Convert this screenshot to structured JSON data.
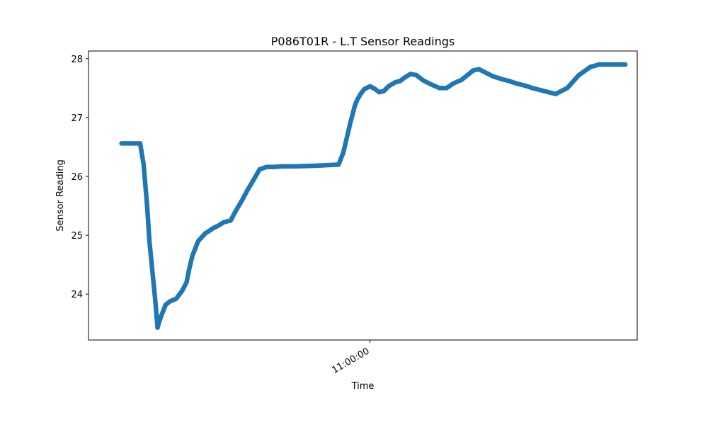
{
  "chart_data": {
    "type": "scatter",
    "title": "P086T01R - L.T Sensor Readings",
    "xlabel": "Time",
    "ylabel": "Sensor Reading",
    "x_ticks": [
      {
        "value": "11:00:00",
        "minutes": 0
      }
    ],
    "y_ticks": [
      24,
      25,
      26,
      27,
      28
    ],
    "xlim_minutes": [
      -24.25,
      23.03
    ],
    "ylim": [
      23.22,
      28.13
    ],
    "grid": false,
    "marker_color": "#1f77b4",
    "series": [
      {
        "x_minutes": [
          -21.4,
          -20.5,
          -19.8,
          -19.5,
          -19.2,
          -19.0,
          -18.7,
          -18.5,
          -18.3,
          -18.2,
          -18.0,
          -17.8,
          -17.6,
          -17.2,
          -16.7,
          -16.2,
          -15.8,
          -15.6,
          -15.3,
          -14.8,
          -14.2,
          -13.8,
          -13.5,
          -13.0,
          -12.6,
          -12.0,
          -11.6,
          -11.0,
          -10.6,
          -10.0,
          -9.5,
          -8.9,
          -8.3,
          -7.6,
          -6.5,
          -4.8,
          -2.7,
          -2.3,
          -2.0,
          -1.7,
          -1.5,
          -1.3,
          -1.1,
          -0.8,
          -0.5,
          0.0,
          0.4,
          0.8,
          1.2,
          1.6,
          2.2,
          2.6,
          3.0,
          3.5,
          4.0,
          4.6,
          5.3,
          6.0,
          6.6,
          7.2,
          7.9,
          8.4,
          8.9,
          9.4,
          9.9,
          10.6,
          11.4,
          12.0,
          12.6,
          13.4,
          14.0,
          14.6,
          15.2,
          16.0,
          17.0,
          18.0,
          19.0,
          19.4,
          19.7,
          20.0,
          20.4,
          20.8,
          21.2,
          22.0
        ],
        "values": [
          26.56,
          26.56,
          26.56,
          26.2,
          25.5,
          24.9,
          24.3,
          23.9,
          23.43,
          23.5,
          23.62,
          23.72,
          23.82,
          23.88,
          23.92,
          24.05,
          24.2,
          24.4,
          24.65,
          24.9,
          25.03,
          25.08,
          25.12,
          25.17,
          25.22,
          25.25,
          25.4,
          25.6,
          25.75,
          25.95,
          26.12,
          26.16,
          26.16,
          26.17,
          26.17,
          26.18,
          26.2,
          26.4,
          26.65,
          26.9,
          27.05,
          27.2,
          27.3,
          27.4,
          27.48,
          27.53,
          27.49,
          27.43,
          27.45,
          27.53,
          27.6,
          27.62,
          27.68,
          27.74,
          27.72,
          27.63,
          27.56,
          27.5,
          27.5,
          27.58,
          27.64,
          27.72,
          27.8,
          27.82,
          27.77,
          27.7,
          27.65,
          27.62,
          27.58,
          27.54,
          27.5,
          27.47,
          27.44,
          27.4,
          27.5,
          27.72,
          27.86,
          27.88,
          27.9,
          27.9,
          27.9,
          27.9,
          27.9,
          27.9
        ]
      }
    ]
  }
}
